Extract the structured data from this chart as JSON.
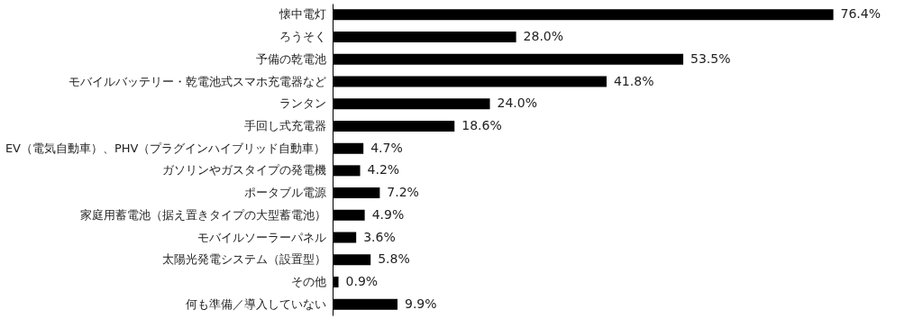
{
  "chart_data": {
    "type": "bar",
    "orientation": "horizontal",
    "grid": false,
    "categories": [
      "懐中電灯",
      "ろうそく",
      "予備の乾電池",
      "モバイルバッテリー・乾電池式スマホ充電器など",
      "ランタン",
      "手回し式充電器",
      "EV（電気自動車）、PHV（プラグインハイブリッド自動車）",
      "ガソリンやガスタイプの発電機",
      "ポータブル電源",
      "家庭用蓄電池（据え置きタイプの大型蓄電池）",
      "モバイルソーラーパネル",
      "太陽光発電システム（設置型）",
      "その他",
      "何も準備／導入していない"
    ],
    "values": [
      76.4,
      28.0,
      53.5,
      41.8,
      24.0,
      18.6,
      4.7,
      4.2,
      7.2,
      4.9,
      3.6,
      5.8,
      0.9,
      9.9
    ],
    "value_labels": [
      "76.4%",
      "28.0%",
      "53.5%",
      "41.8%",
      "24.0%",
      "18.6%",
      "4.7%",
      "4.2%",
      "7.2%",
      "4.9%",
      "3.6%",
      "5.8%",
      "0.9%",
      "9.9%"
    ],
    "color": "#000000"
  }
}
